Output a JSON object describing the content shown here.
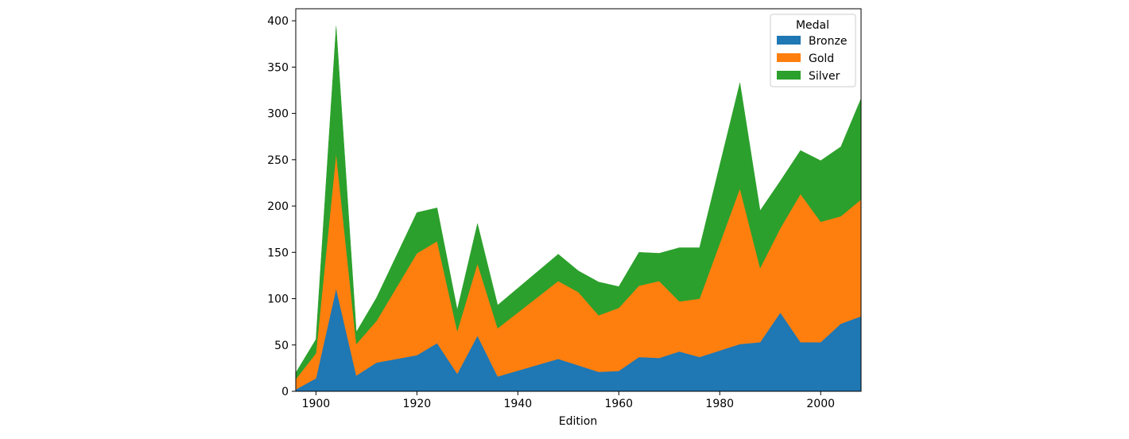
{
  "chart_data": {
    "type": "area",
    "stacked": true,
    "title": "",
    "xlabel": "Edition",
    "ylabel": "",
    "xlim": [
      1896,
      2008
    ],
    "ylim": [
      0,
      413
    ],
    "xticks": [
      1900,
      1920,
      1940,
      1960,
      1980,
      2000
    ],
    "yticks": [
      0,
      50,
      100,
      150,
      200,
      250,
      300,
      350,
      400
    ],
    "grid": false,
    "legend": {
      "title": "Medal",
      "placement": "top-right"
    },
    "x": [
      1896,
      1900,
      1904,
      1908,
      1912,
      1920,
      1924,
      1928,
      1932,
      1936,
      1948,
      1952,
      1956,
      1960,
      1964,
      1968,
      1972,
      1976,
      1984,
      1988,
      1992,
      1996,
      2000,
      2004,
      2008
    ],
    "series": [
      {
        "name": "Bronze",
        "color": "#1f77b4",
        "values": [
          2,
          14,
          111,
          17,
          31,
          39,
          52,
          19,
          60,
          16,
          35,
          28,
          21,
          22,
          37,
          36,
          43,
          37,
          51,
          53,
          85,
          53,
          53,
          73,
          81
        ]
      },
      {
        "name": "Gold",
        "color": "#ff7f0e",
        "values": [
          11,
          27,
          146,
          34,
          45,
          110,
          110,
          46,
          78,
          52,
          84,
          79,
          61,
          68,
          77,
          83,
          54,
          63,
          168,
          80,
          91,
          160,
          130,
          116,
          126
        ]
      },
      {
        "name": "Silver",
        "color": "#2ca02c",
        "values": [
          7,
          15,
          137,
          13,
          25,
          44,
          36,
          23,
          43,
          25,
          29,
          23,
          36,
          23,
          36,
          30,
          58,
          55,
          114,
          62,
          51,
          47,
          66,
          75,
          109
        ]
      }
    ]
  }
}
